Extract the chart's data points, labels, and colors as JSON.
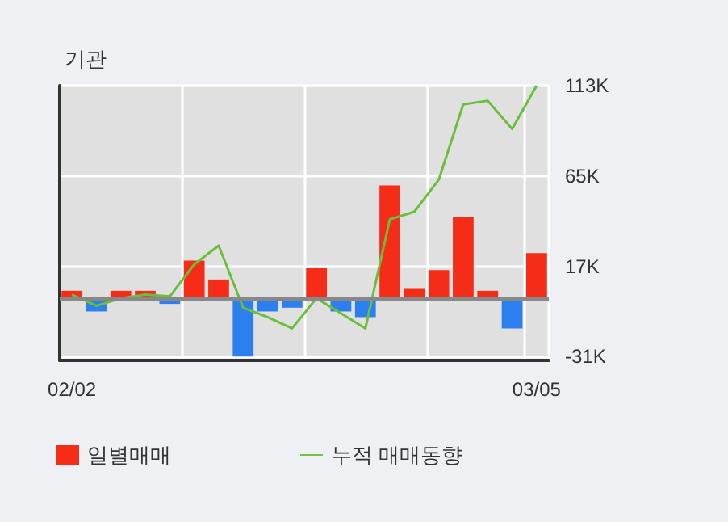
{
  "chart_data": {
    "type": "bar",
    "title": "기관",
    "categories": [
      "02/02",
      null,
      null,
      null,
      null,
      null,
      null,
      null,
      null,
      null,
      null,
      null,
      null,
      null,
      null,
      null,
      null,
      null,
      null,
      "03/05"
    ],
    "series": [
      {
        "name": "일별매매",
        "color": "#f52d18",
        "colors": [
          "#f52d18",
          "#2b7fef",
          "#f52d18",
          "#f52d18",
          "#2b7fef",
          "#f52d18",
          "#f52d18",
          "#2b7fef",
          "#2b7fef",
          "#2b7fef",
          "#f52d18",
          "#2b7fef",
          "#2b7fef",
          "#f52d18",
          "#f52d18",
          "#f52d18",
          "#f52d18",
          "#f52d18",
          "#2b7fef",
          "#f52d18"
        ],
        "values": [
          4000,
          -7000,
          4000,
          4000,
          -3000,
          20000,
          10000,
          -31000,
          -7000,
          -5000,
          16000,
          -7000,
          -10000,
          60000,
          5000,
          15000,
          43000,
          4000,
          -16000,
          24000
        ]
      },
      {
        "name": "누적 매매동향",
        "type": "line",
        "color": "#6abf3a",
        "values": [
          2000,
          -4000,
          0,
          2000,
          1000,
          18000,
          28000,
          -5000,
          -10000,
          -16000,
          0,
          -8000,
          -16000,
          42000,
          46000,
          63000,
          103000,
          105000,
          90000,
          113000
        ]
      }
    ],
    "ylim": [
      -33000,
      113000
    ],
    "yticks": [
      {
        "value": -31000,
        "label": "-31K"
      },
      {
        "value": 17000,
        "label": "17K"
      },
      {
        "value": 65000,
        "label": "65K"
      },
      {
        "value": 113000,
        "label": "113K"
      }
    ],
    "grid": true,
    "legend": "bottom left",
    "marker": "none",
    "line_style": "solid"
  }
}
